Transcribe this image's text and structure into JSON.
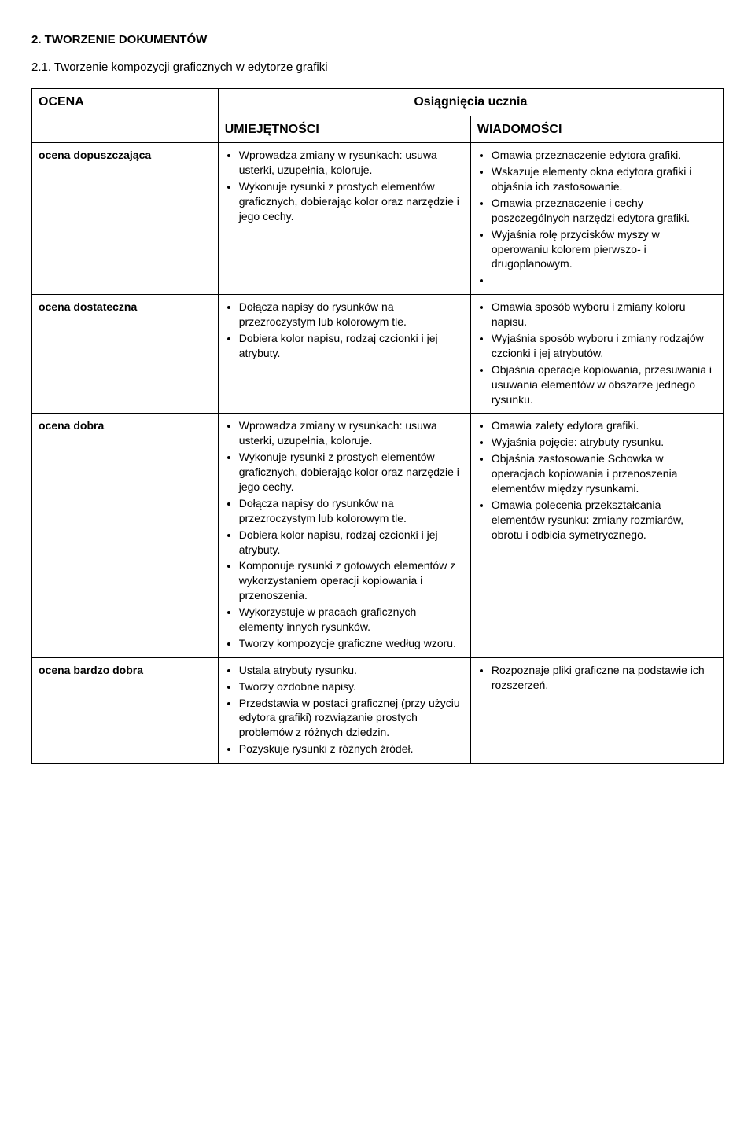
{
  "title_main": "2. TWORZENIE DOKUMENTÓW",
  "title_sub": "2.1. Tworzenie kompozycji graficznych w  edytorze grafiki",
  "headers": {
    "ocena": "OCENA",
    "osiagniecia": "Osiągnięcia ucznia",
    "umiejetnosci": "UMIEJĘTNOŚCI",
    "wiadomosci": "WIADOMOŚCI"
  },
  "rows": {
    "r1": {
      "label": "ocena dopuszczająca",
      "umiej": [
        "Wprowadza zmiany w rysunkach: usuwa usterki, uzupełnia, koloruje.",
        "Wykonuje rysunki z prostych elementów graficznych, dobierając kolor oraz narzędzie i jego cechy."
      ],
      "wiad": [
        "Omawia przeznaczenie edytora grafiki.",
        "Wskazuje elementy okna edytora grafiki i objaśnia ich zastosowanie.",
        "Omawia przeznaczenie i cechy poszczególnych narzędzi edytora grafiki.",
        "Wyjaśnia rolę przycisków myszy w operowaniu kolorem pierwszo- i drugoplanowym.",
        ""
      ]
    },
    "r2": {
      "label": "ocena dostateczna",
      "umiej": [
        "Dołącza napisy do rysunków na przezroczystym lub kolorowym tle.",
        "Dobiera kolor napisu, rodzaj czcionki i jej atrybuty."
      ],
      "wiad": [
        "Omawia sposób wyboru i zmiany koloru napisu.",
        "Wyjaśnia sposób wyboru i zmiany rodzajów czcionki i jej atrybutów.",
        "Objaśnia operacje kopiowania, przesuwania i usuwania elementów w obszarze jednego rysunku."
      ]
    },
    "r3": {
      "label": "ocena dobra",
      "umiej": [
        "Wprowadza zmiany w rysunkach: usuwa usterki, uzupełnia, koloruje.",
        "Wykonuje rysunki z prostych elementów graficznych, dobierając kolor oraz narzędzie i jego cechy.",
        "Dołącza napisy do rysunków na przezroczystym lub kolorowym tle.",
        "Dobiera kolor napisu, rodzaj czcionki i jej atrybuty.",
        "Komponuje rysunki z gotowych elementów z wykorzystaniem operacji kopiowania i przenoszenia.",
        "Wykorzystuje w pracach graficznych elementy innych rysunków.",
        "Tworzy kompozycje graficzne według wzoru."
      ],
      "wiad": [
        "Omawia zalety edytora grafiki.",
        "Wyjaśnia pojęcie: atrybuty rysunku.",
        "Objaśnia zastosowanie Schowka w operacjach kopiowania i przenoszenia elementów między rysunkami.",
        "Omawia polecenia przekształcania elementów rysunku: zmiany rozmiarów, obrotu i odbicia symetrycznego."
      ]
    },
    "r4": {
      "label": "ocena bardzo dobra",
      "umiej": [
        "Ustala atrybuty rysunku.",
        "Tworzy ozdobne napisy.",
        "Przedstawia w postaci graficznej (przy użyciu edytora grafiki) rozwiązanie prostych problemów z różnych dziedzin.",
        "Pozyskuje rysunki z różnych źródeł."
      ],
      "wiad": [
        "Rozpoznaje pliki graficzne na podstawie ich rozszerzeń."
      ]
    }
  }
}
